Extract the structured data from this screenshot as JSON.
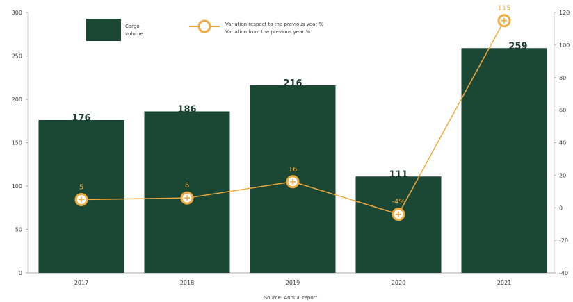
{
  "chart_data": {
    "type": "bar",
    "categories": [
      "2017",
      "2018",
      "2019",
      "2020",
      "2021"
    ],
    "series": [
      {
        "name": "Cargo\nvolume",
        "type": "bar",
        "values": [
          176,
          186,
          216,
          111,
          259
        ],
        "labels": [
          "176",
          "186",
          "216",
          "111",
          "259"
        ]
      },
      {
        "name": "Variation respect to the previous year %\nVariation from the previous year %",
        "type": "line",
        "axis": "right",
        "values": [
          5,
          6,
          16,
          -4,
          115
        ],
        "labels": [
          "5",
          "6",
          "16",
          "-4%",
          "115"
        ]
      }
    ],
    "ylim": [
      0,
      300
    ],
    "yticks": [
      "0",
      "50",
      "100",
      "150",
      "200",
      "250",
      "300"
    ],
    "y2lim": [
      -40,
      120
    ],
    "y2ticks": [
      "-40",
      "-20",
      "0",
      "20",
      "40",
      "60",
      "80",
      "100",
      "120"
    ],
    "source": "Source: Annual report",
    "colors": {
      "bar": "#1b4735",
      "line": "#f2a93b"
    },
    "legend_position": "top"
  }
}
